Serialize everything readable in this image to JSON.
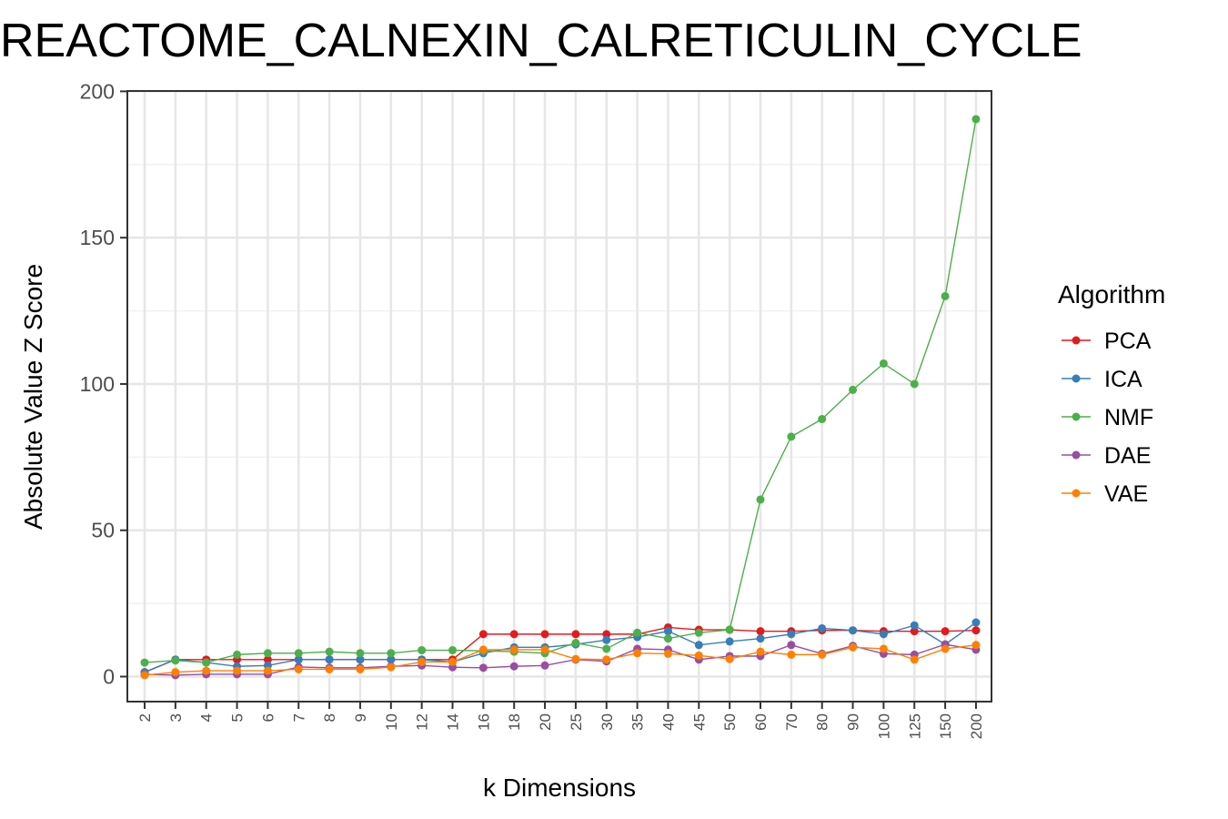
{
  "chart_data": {
    "type": "line",
    "title": "REACTOME_CALNEXIN_CALRETICULIN_CYCLE",
    "xlabel": "k Dimensions",
    "ylabel": "Absolute Value Z Score",
    "ylim": [
      -8,
      201
    ],
    "yticks": [
      0,
      50,
      100,
      150,
      200
    ],
    "grid": true,
    "legend_position": "right",
    "legend_title": "Algorithm",
    "categories": [
      "2",
      "3",
      "4",
      "5",
      "6",
      "7",
      "8",
      "9",
      "10",
      "12",
      "14",
      "16",
      "18",
      "20",
      "25",
      "30",
      "35",
      "40",
      "45",
      "50",
      "60",
      "70",
      "80",
      "90",
      "100",
      "125",
      "150",
      "200"
    ],
    "series": [
      {
        "name": "PCA",
        "color": "#E41A1C",
        "values": [
          1.5,
          5.8,
          5.8,
          5.8,
          5.8,
          5.8,
          5.8,
          5.8,
          5.8,
          5.8,
          5.8,
          14.5,
          14.5,
          14.5,
          14.5,
          14.5,
          14.5,
          16.8,
          16.0,
          16.0,
          15.5,
          15.5,
          15.8,
          15.8,
          15.5,
          15.5,
          15.5,
          15.8
        ]
      },
      {
        "name": "ICA",
        "color": "#377EB8",
        "values": [
          1.5,
          5.8,
          4.8,
          3.5,
          3.8,
          5.8,
          5.8,
          5.8,
          5.8,
          5.8,
          5.0,
          8.0,
          10.0,
          10.0,
          11.0,
          12.5,
          13.5,
          15.5,
          10.8,
          12.0,
          13.0,
          14.5,
          16.5,
          15.8,
          14.5,
          17.5,
          11.0,
          18.5
        ]
      },
      {
        "name": "NMF",
        "color": "#4DAF4A",
        "values": [
          4.8,
          5.5,
          4.8,
          7.5,
          8.0,
          8.0,
          8.5,
          8.0,
          8.0,
          9.0,
          9.0,
          8.8,
          8.5,
          8.0,
          11.5,
          9.5,
          15.0,
          13.0,
          15.0,
          16.0,
          60.5,
          82.0,
          88.0,
          98.0,
          107.0,
          100.0,
          130.0,
          190.5
        ]
      },
      {
        "name": "DAE",
        "color": "#984EA3",
        "values": [
          0.8,
          0.5,
          0.8,
          0.8,
          0.8,
          3.3,
          3.0,
          3.0,
          3.5,
          3.8,
          3.2,
          3.0,
          3.5,
          3.8,
          5.8,
          5.2,
          9.5,
          9.2,
          5.8,
          7.0,
          7.0,
          10.8,
          7.8,
          10.5,
          7.8,
          7.5,
          11.0,
          9.2
        ]
      },
      {
        "name": "VAE",
        "color": "#FF7F00",
        "values": [
          0.5,
          1.5,
          2.0,
          2.0,
          2.0,
          2.5,
          2.5,
          2.5,
          3.2,
          5.0,
          5.0,
          9.2,
          9.2,
          9.2,
          6.0,
          5.8,
          8.0,
          7.8,
          7.2,
          6.0,
          8.5,
          7.5,
          7.5,
          10.0,
          9.5,
          5.8,
          9.5,
          10.8
        ]
      }
    ]
  }
}
